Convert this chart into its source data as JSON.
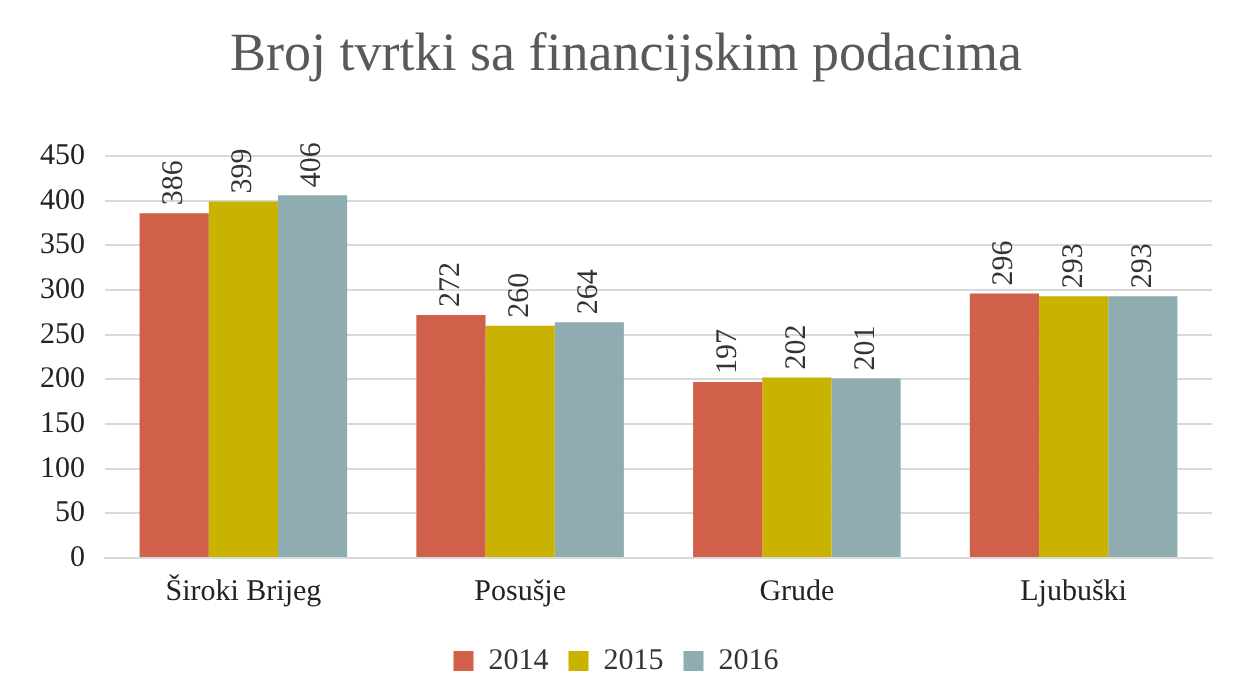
{
  "chart_data": {
    "type": "bar",
    "title": "Broj tvrtki sa financijskim podacima",
    "categories": [
      "Široki Brijeg",
      "Posušje",
      "Grude",
      "Ljubuški"
    ],
    "series": [
      {
        "name": "2014",
        "color": "#d0604a",
        "values": [
          386,
          272,
          197,
          296
        ]
      },
      {
        "name": "2015",
        "color": "#c9b200",
        "values": [
          399,
          260,
          202,
          293
        ]
      },
      {
        "name": "2016",
        "color": "#8fadb0",
        "values": [
          406,
          264,
          201,
          293
        ]
      }
    ],
    "ylim": [
      0,
      450
    ],
    "yticks": [
      0,
      50,
      100,
      150,
      200,
      250,
      300,
      350,
      400,
      450
    ],
    "grid": "y",
    "legend": "bottom",
    "data_labels": true
  }
}
